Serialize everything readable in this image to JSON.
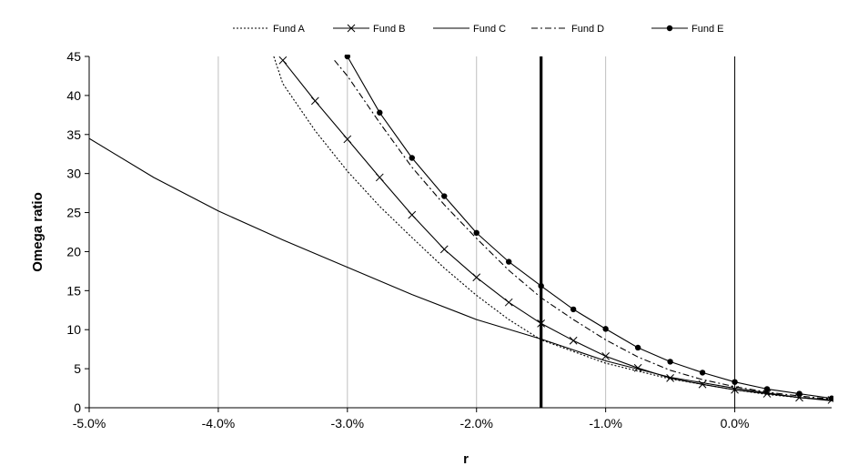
{
  "chart_data": {
    "type": "line",
    "xlabel": "r",
    "ylabel": "Omega ratio",
    "xlim": [
      -0.05,
      0.0075
    ],
    "ylim": [
      0,
      45
    ],
    "x_ticks": [
      -0.05,
      -0.04,
      -0.03,
      -0.02,
      -0.01,
      0.0
    ],
    "x_tick_labels": [
      "-5.0%",
      "-4.0%",
      "-3.0%",
      "-2.0%",
      "-1.0%",
      "0.0%"
    ],
    "y_ticks": [
      0,
      5,
      10,
      15,
      20,
      25,
      30,
      35,
      40,
      45
    ],
    "y_tick_labels": [
      "0",
      "5",
      "10",
      "15",
      "20",
      "25",
      "30",
      "35",
      "40",
      "45"
    ],
    "grid": "vertical",
    "legend_position": "top",
    "reference_line_x": -0.015,
    "series": [
      {
        "name": "Fund A",
        "style": "dotted",
        "marker": "none",
        "x": [
          -0.0357,
          -0.035,
          -0.0325,
          -0.03,
          -0.0275,
          -0.025,
          -0.0225,
          -0.02,
          -0.0175,
          -0.015,
          -0.0125,
          -0.01,
          -0.0075,
          -0.005,
          -0.0025,
          0.0,
          0.0025,
          0.005,
          0.0075
        ],
        "y": [
          45,
          41.5,
          35.5,
          30.3,
          25.8,
          21.8,
          17.9,
          14.4,
          11.3,
          8.7,
          7.2,
          5.7,
          4.7,
          3.7,
          3.0,
          2.3,
          1.7,
          1.3,
          1.0
        ]
      },
      {
        "name": "Fund B",
        "style": "solid",
        "marker": "x",
        "x": [
          -0.035,
          -0.0325,
          -0.03,
          -0.0275,
          -0.025,
          -0.0225,
          -0.02,
          -0.0175,
          -0.015,
          -0.0125,
          -0.01,
          -0.0075,
          -0.005,
          -0.0025,
          0.0,
          0.0025,
          0.005,
          0.0075
        ],
        "y": [
          44.5,
          39.3,
          34.4,
          29.5,
          24.7,
          20.3,
          16.7,
          13.5,
          10.8,
          8.6,
          6.6,
          5.1,
          3.8,
          3.0,
          2.3,
          1.8,
          1.3,
          1.0
        ]
      },
      {
        "name": "Fund C",
        "style": "solid",
        "marker": "none",
        "x": [
          -0.05,
          -0.045,
          -0.04,
          -0.035,
          -0.03,
          -0.025,
          -0.02,
          -0.015,
          -0.01,
          -0.005,
          0.0,
          0.005,
          0.0075
        ],
        "y": [
          34.5,
          29.5,
          25.2,
          21.5,
          18.0,
          14.5,
          11.3,
          8.8,
          6.0,
          3.9,
          2.5,
          1.3,
          0.9
        ]
      },
      {
        "name": "Fund D",
        "style": "dashdot",
        "marker": "none",
        "x": [
          -0.031,
          -0.03,
          -0.0275,
          -0.025,
          -0.0225,
          -0.02,
          -0.0175,
          -0.015,
          -0.0125,
          -0.01,
          -0.0075,
          -0.005,
          -0.0025,
          0.0,
          0.0025,
          0.005,
          0.0075
        ],
        "y": [
          44.5,
          42.5,
          36.5,
          30.8,
          26.0,
          21.7,
          17.6,
          14.1,
          11.3,
          8.7,
          6.5,
          4.8,
          3.6,
          2.7,
          2.0,
          1.5,
          1.1
        ]
      },
      {
        "name": "Fund E",
        "style": "solid",
        "marker": "circle",
        "x": [
          -0.03,
          -0.0275,
          -0.025,
          -0.0225,
          -0.02,
          -0.0175,
          -0.015,
          -0.0125,
          -0.01,
          -0.0075,
          -0.005,
          -0.0025,
          0.0,
          0.0025,
          0.005,
          0.0075
        ],
        "y": [
          45.0,
          37.8,
          32.0,
          27.1,
          22.4,
          18.7,
          15.6,
          12.6,
          10.1,
          7.7,
          5.9,
          4.5,
          3.3,
          2.4,
          1.8,
          1.2
        ]
      }
    ]
  }
}
